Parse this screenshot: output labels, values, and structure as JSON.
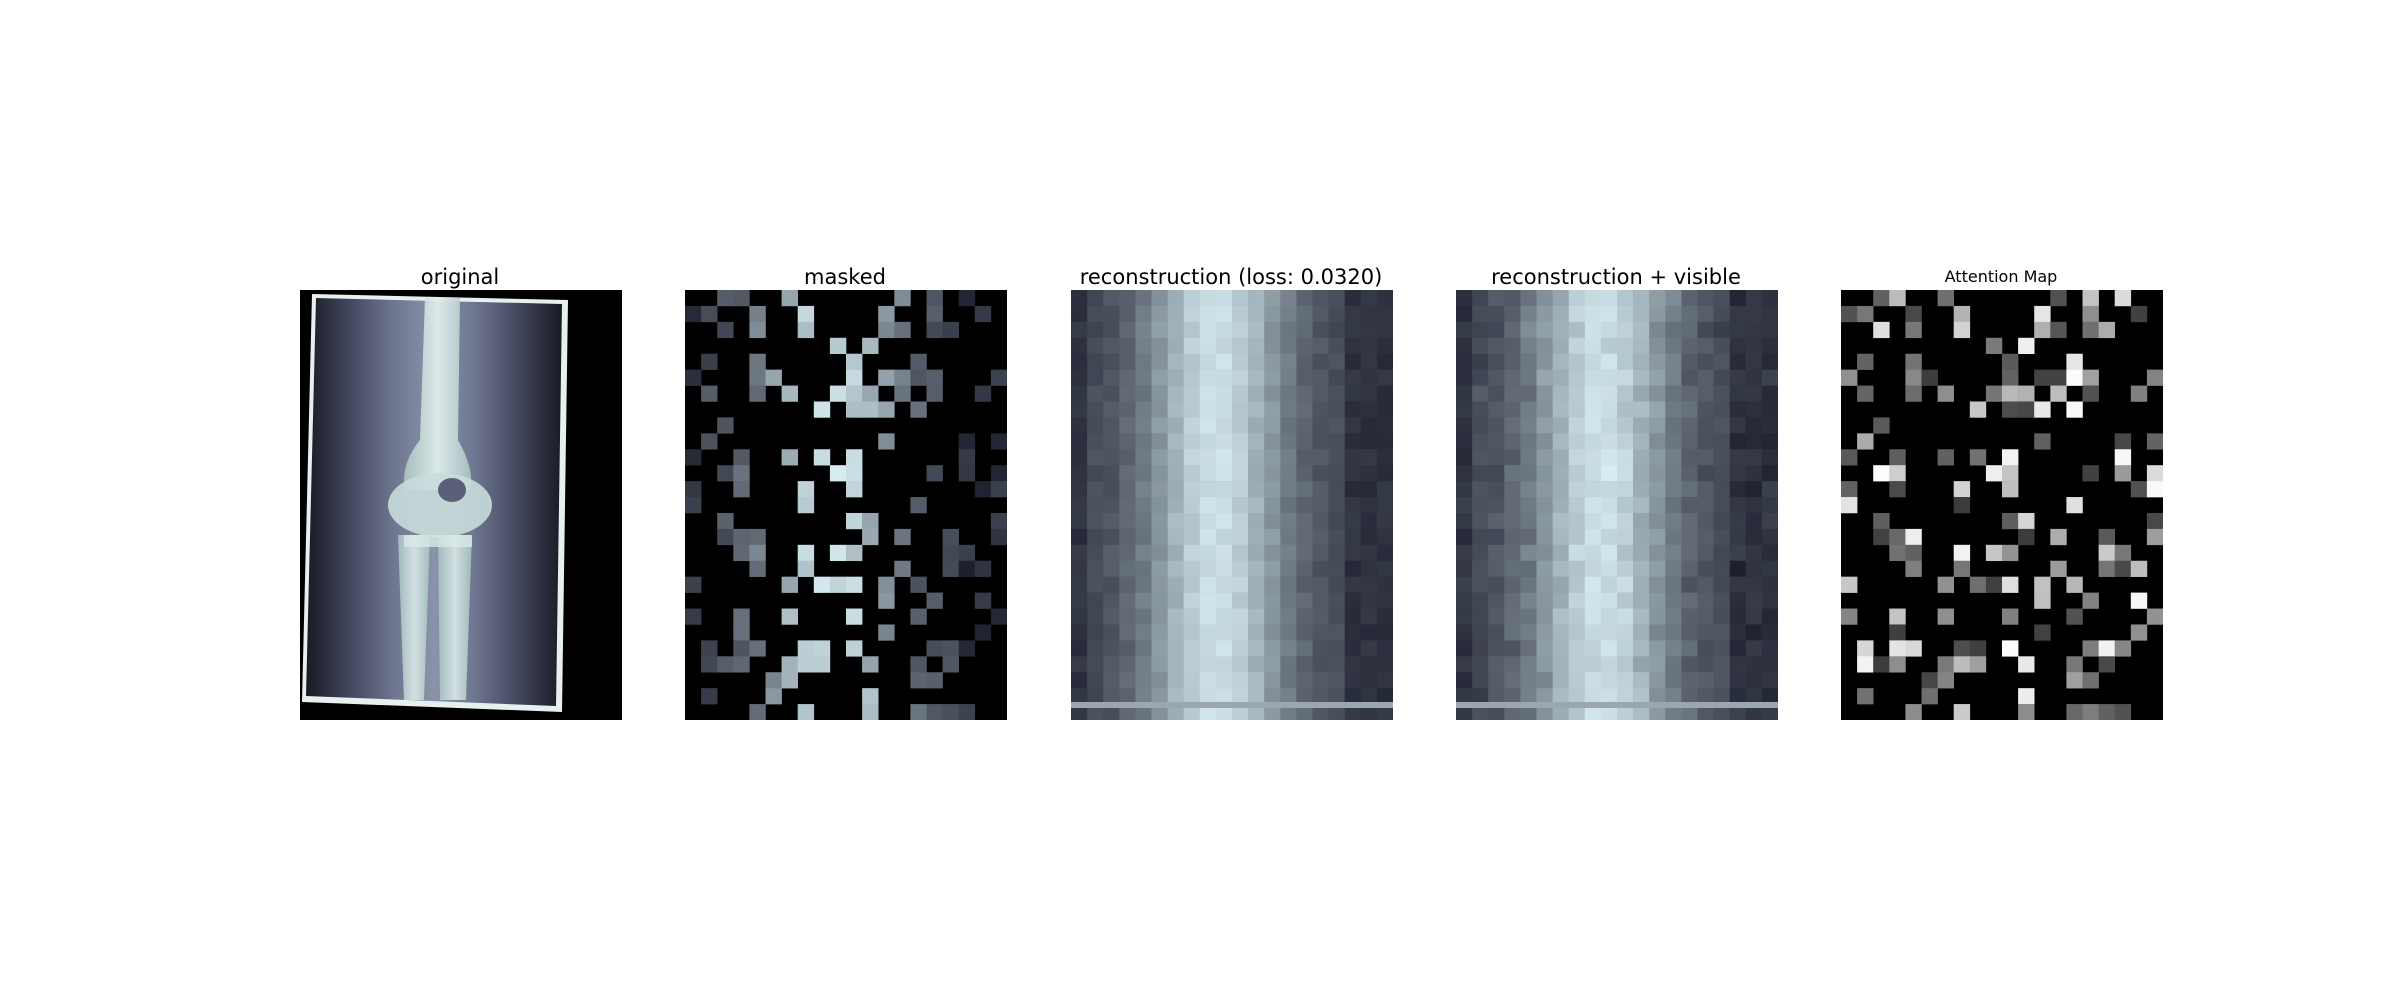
{
  "figure": {
    "panels": [
      {
        "id": "original",
        "title": "original"
      },
      {
        "id": "masked",
        "title": "masked"
      },
      {
        "id": "reconstruction",
        "title": "reconstruction (loss: 0.0320)"
      },
      {
        "id": "reconstruction-visible",
        "title": "reconstruction + visible"
      },
      {
        "id": "attention",
        "title": "Attention Map"
      }
    ],
    "colormap_colors": {
      "background": "#000000",
      "dark": "#2a2a3a",
      "bone": "#cfe3e0",
      "tissue": "#6f7590"
    }
  }
}
